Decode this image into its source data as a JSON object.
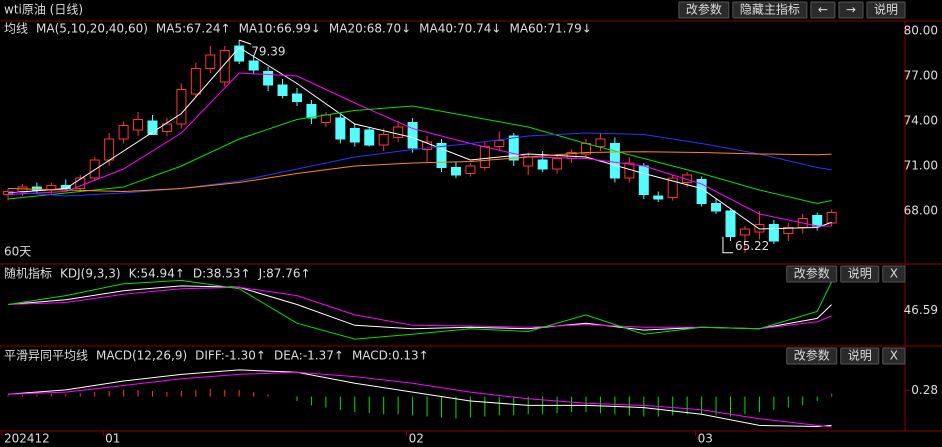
{
  "header": {
    "title": "wti原油 (日线)",
    "buttons": [
      "改参数",
      "隐藏主指标",
      "←",
      "→",
      "说明"
    ]
  },
  "chart_data": [
    {
      "type": "candlestick",
      "title": "均线",
      "subtitle": "MA(5,10,20,40,60)",
      "note": "60天",
      "categories": [
        "202412",
        null,
        null,
        null,
        null,
        null,
        null,
        "01",
        null,
        null,
        null,
        null,
        null,
        null,
        null,
        null,
        null,
        null,
        null,
        null,
        null,
        null,
        null,
        null,
        null,
        null,
        null,
        null,
        "02",
        null,
        null,
        null,
        null,
        null,
        null,
        null,
        null,
        null,
        null,
        null,
        null,
        null,
        null,
        null,
        null,
        null,
        null,
        null,
        "03",
        null,
        null,
        null,
        null,
        null,
        null,
        null,
        null,
        null
      ],
      "candles": [
        [
          69.1,
          69.5,
          68.7,
          69.3
        ],
        [
          69.3,
          69.8,
          69.0,
          69.6
        ],
        [
          69.6,
          69.9,
          69.2,
          69.4
        ],
        [
          69.4,
          69.9,
          69.1,
          69.7
        ],
        [
          69.7,
          70.1,
          69.4,
          69.5
        ],
        [
          69.5,
          70.4,
          69.3,
          70.2
        ],
        [
          70.2,
          71.6,
          70.0,
          71.4
        ],
        [
          71.4,
          73.2,
          71.0,
          72.8
        ],
        [
          72.8,
          74.0,
          72.5,
          73.7
        ],
        [
          73.4,
          74.6,
          73.0,
          74.1
        ],
        [
          74.0,
          74.4,
          73.1,
          73.1
        ],
        [
          73.3,
          74.2,
          73.0,
          73.8
        ],
        [
          73.8,
          76.5,
          73.5,
          76.1
        ],
        [
          75.8,
          77.9,
          75.6,
          77.5
        ],
        [
          77.5,
          79.0,
          77.2,
          78.4
        ],
        [
          76.6,
          79.0,
          76.3,
          78.7
        ],
        [
          79.0,
          79.39,
          77.8,
          78.0
        ],
        [
          78.0,
          78.4,
          77.1,
          77.4
        ],
        [
          77.3,
          77.6,
          76.0,
          76.4
        ],
        [
          76.4,
          76.8,
          75.5,
          75.7
        ],
        [
          75.8,
          76.2,
          75.0,
          75.3
        ],
        [
          75.1,
          75.4,
          73.8,
          74.2
        ],
        [
          73.9,
          74.6,
          73.6,
          74.4
        ],
        [
          74.2,
          74.4,
          72.5,
          72.8
        ],
        [
          73.5,
          73.8,
          72.3,
          72.6
        ],
        [
          73.4,
          73.6,
          72.3,
          72.4
        ],
        [
          72.4,
          73.5,
          72.0,
          73.1
        ],
        [
          72.9,
          74.0,
          72.6,
          73.6
        ],
        [
          73.9,
          74.2,
          71.9,
          72.2
        ],
        [
          72.1,
          73.0,
          71.2,
          72.6
        ],
        [
          72.5,
          72.8,
          70.6,
          70.9
        ],
        [
          70.9,
          71.3,
          70.2,
          70.4
        ],
        [
          70.5,
          71.2,
          70.3,
          71.0
        ],
        [
          70.9,
          72.6,
          70.7,
          72.3
        ],
        [
          72.3,
          73.3,
          72.0,
          72.7
        ],
        [
          73.0,
          73.2,
          71.0,
          71.4
        ],
        [
          71.0,
          71.9,
          70.4,
          71.6
        ],
        [
          71.4,
          72.0,
          70.6,
          70.8
        ],
        [
          70.8,
          71.8,
          70.5,
          71.5
        ],
        [
          71.5,
          72.1,
          71.2,
          71.9
        ],
        [
          71.8,
          72.8,
          71.5,
          72.5
        ],
        [
          72.3,
          73.2,
          72.0,
          72.8
        ],
        [
          72.5,
          72.9,
          69.9,
          70.2
        ],
        [
          70.2,
          71.6,
          69.9,
          71.2
        ],
        [
          71.0,
          71.2,
          68.8,
          69.1
        ],
        [
          69.0,
          69.3,
          68.6,
          68.8
        ],
        [
          68.9,
          70.4,
          68.7,
          70.2
        ],
        [
          69.9,
          70.6,
          69.6,
          70.4
        ],
        [
          70.1,
          70.3,
          68.3,
          68.5
        ],
        [
          68.5,
          68.8,
          67.8,
          68.0
        ],
        [
          68.0,
          68.1,
          66.0,
          66.3
        ],
        [
          66.4,
          67.0,
          65.22,
          66.8
        ],
        [
          66.6,
          68.0,
          66.1,
          67.1
        ],
        [
          67.1,
          67.4,
          65.8,
          66.0
        ],
        [
          66.5,
          67.2,
          66.0,
          66.9
        ],
        [
          66.9,
          67.8,
          66.5,
          67.5
        ],
        [
          67.7,
          67.9,
          66.7,
          67.0
        ],
        [
          67.2,
          68.1,
          67.0,
          67.9
        ]
      ],
      "up_color": "#ff3232",
      "down_color": "#54fcfc",
      "ylim": [
        64.6,
        80.6
      ],
      "yticks": [
        {
          "value": 80,
          "label": "80.00"
        },
        {
          "value": 77,
          "label": "77.00"
        },
        {
          "value": 74,
          "label": "74.00"
        },
        {
          "value": 71,
          "label": "71.00"
        },
        {
          "value": 68,
          "label": "68.00"
        }
      ],
      "series": [
        {
          "name": "MA5:67.24↑",
          "color": "#ffffff",
          "x": [
            0,
            4,
            8,
            12,
            16,
            20,
            24,
            28,
            32,
            36,
            40,
            44,
            48,
            52,
            56,
            57
          ],
          "values": [
            69.2,
            69.5,
            72.0,
            74.5,
            78.9,
            76.5,
            73.8,
            72.9,
            71.4,
            71.8,
            71.6,
            70.5,
            69.5,
            66.8,
            66.9,
            67.24
          ]
        },
        {
          "name": "MA10:66.99↓",
          "color": "#ff00ff",
          "x": [
            0,
            4,
            8,
            12,
            16,
            20,
            24,
            28,
            32,
            36,
            40,
            44,
            48,
            52,
            56,
            57
          ],
          "values": [
            69.1,
            69.3,
            70.8,
            73.2,
            77.2,
            77.0,
            75.2,
            73.5,
            72.5,
            71.6,
            71.5,
            71.0,
            69.8,
            67.8,
            67.0,
            66.99
          ]
        },
        {
          "name": "MA20:68.70↓",
          "color": "#00e000",
          "x": [
            0,
            4,
            8,
            12,
            16,
            20,
            24,
            28,
            32,
            36,
            40,
            44,
            48,
            52,
            56,
            57
          ],
          "values": [
            68.8,
            69.2,
            69.6,
            71.0,
            72.8,
            74.1,
            74.7,
            75.0,
            74.3,
            73.6,
            72.5,
            71.5,
            70.5,
            69.4,
            68.5,
            68.7
          ]
        },
        {
          "name": "MA40:70.74↓",
          "color": "#3030ff",
          "x": [
            0,
            4,
            8,
            12,
            16,
            20,
            24,
            28,
            32,
            36,
            40,
            44,
            48,
            52,
            56,
            57
          ],
          "values": [
            69.3,
            69.0,
            69.2,
            69.5,
            70.0,
            70.8,
            71.6,
            72.1,
            72.5,
            73.0,
            73.2,
            73.1,
            72.5,
            71.8,
            70.9,
            70.74
          ]
        },
        {
          "name": "MA60:71.79↓",
          "color": "#ff8c00",
          "x": [
            0,
            4,
            8,
            12,
            16,
            20,
            24,
            28,
            32,
            36,
            40,
            44,
            48,
            52,
            56,
            57
          ],
          "values": [
            69.5,
            69.4,
            69.3,
            69.5,
            69.9,
            70.5,
            71.0,
            71.2,
            71.3,
            71.6,
            71.9,
            71.95,
            71.9,
            71.8,
            71.75,
            71.79
          ]
        }
      ]
    },
    {
      "type": "line",
      "title": "随机指标",
      "subtitle": "KDJ(9,3,3)",
      "buttons": [
        "改参数",
        "说明",
        "X"
      ],
      "ylim": [
        -5,
        105
      ],
      "yticks": [
        46.59
      ],
      "series": [
        {
          "name": "K:54.94↑",
          "color": "#ffffff",
          "x": [
            0,
            4,
            8,
            12,
            16,
            20,
            24,
            28,
            32,
            36,
            40,
            44,
            48,
            52,
            56,
            57
          ],
          "values": [
            55,
            62,
            75,
            82,
            80,
            55,
            25,
            20,
            22,
            20,
            28,
            18,
            22,
            20,
            35,
            54.94
          ]
        },
        {
          "name": "D:38.53↑",
          "color": "#ff00ff",
          "x": [
            0,
            4,
            8,
            12,
            16,
            20,
            24,
            28,
            32,
            36,
            40,
            44,
            48,
            52,
            56,
            57
          ],
          "values": [
            55,
            58,
            70,
            78,
            80,
            68,
            40,
            25,
            24,
            22,
            26,
            22,
            22,
            20,
            30,
            38.53
          ]
        },
        {
          "name": "J:87.76↑",
          "color": "#00e000",
          "x": [
            0,
            4,
            8,
            12,
            16,
            20,
            24,
            28,
            32,
            36,
            40,
            44,
            48,
            52,
            56,
            57
          ],
          "values": [
            55,
            68,
            85,
            90,
            78,
            28,
            5,
            12,
            20,
            16,
            40,
            12,
            22,
            20,
            45,
            87.76
          ]
        }
      ]
    },
    {
      "type": "macd",
      "title": "平滑异同平均线",
      "subtitle": "MACD(12,26,9)",
      "buttons": [
        "改参数",
        "说明",
        "X"
      ],
      "ylim": [
        -1.6,
        2.1
      ],
      "yticks": [
        0.28
      ],
      "value_name": "MACD:0.13↑",
      "value_color": "#e0e000",
      "up_color": "#ff3232",
      "down_color": "#00e000",
      "values": [
        0.05,
        0.08,
        0.1,
        0.12,
        0.1,
        0.15,
        0.2,
        0.25,
        0.3,
        0.3,
        0.25,
        0.2,
        0.25,
        0.3,
        0.35,
        0.3,
        0.3,
        0.2,
        0.1,
        0.0,
        -0.2,
        -0.4,
        -0.5,
        -0.6,
        -0.7,
        -0.75,
        -0.8,
        -0.8,
        -0.85,
        -0.9,
        -0.95,
        -1.0,
        -0.95,
        -0.9,
        -0.85,
        -0.85,
        -0.8,
        -0.8,
        -0.75,
        -0.7,
        -0.7,
        -0.75,
        -0.8,
        -0.85,
        -0.9,
        -0.9,
        -0.85,
        -0.8,
        -0.8,
        -0.85,
        -0.9,
        -0.8,
        -0.7,
        -0.6,
        -0.5,
        -0.4,
        -0.2,
        0.13
      ],
      "series": [
        {
          "name": "DIFF:-1.30↑",
          "color": "#ffffff",
          "x": [
            0,
            4,
            8,
            12,
            16,
            20,
            24,
            28,
            32,
            36,
            40,
            44,
            48,
            52,
            56,
            57
          ],
          "values": [
            0.1,
            0.3,
            0.7,
            1.0,
            1.2,
            1.1,
            0.6,
            0.2,
            -0.2,
            -0.4,
            -0.4,
            -0.5,
            -0.8,
            -1.3,
            -1.35,
            -1.3
          ]
        },
        {
          "name": "DEA:-1.37↑",
          "color": "#ff00ff",
          "x": [
            0,
            4,
            8,
            12,
            16,
            20,
            24,
            28,
            32,
            36,
            40,
            44,
            48,
            52,
            56,
            57
          ],
          "values": [
            0.1,
            0.2,
            0.5,
            0.8,
            1.0,
            1.1,
            0.9,
            0.6,
            0.2,
            -0.1,
            -0.3,
            -0.4,
            -0.6,
            -1.0,
            -1.3,
            -1.37
          ]
        }
      ]
    }
  ]
}
